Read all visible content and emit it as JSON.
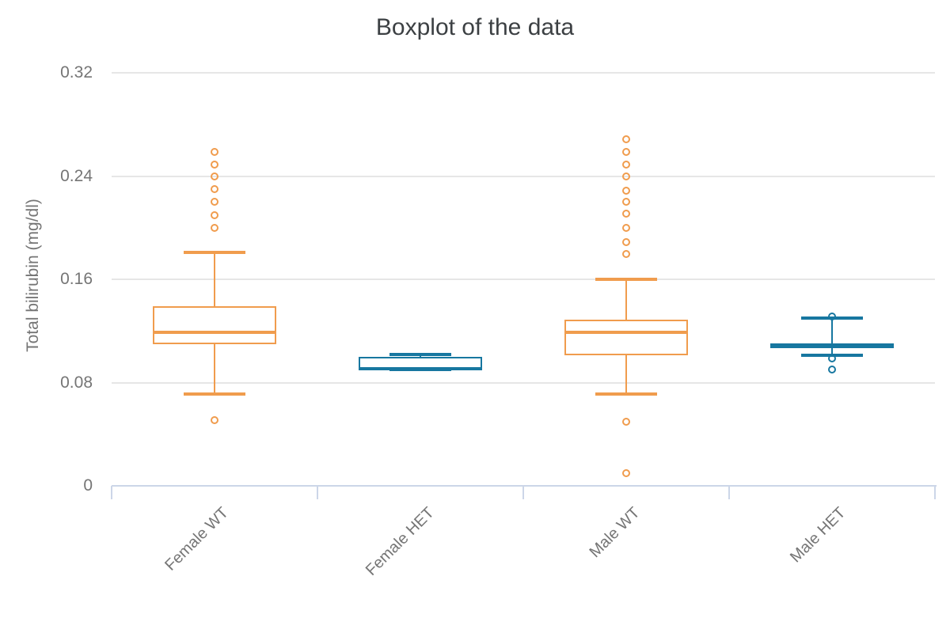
{
  "title": "Boxplot of the data",
  "y_axis": {
    "label": "Total bilirubin (mg/dl)",
    "tick_labels": [
      "0",
      "0.08",
      "0.16",
      "0.24",
      "0.32"
    ],
    "tick_values": [
      0,
      0.08,
      0.16,
      0.24,
      0.32
    ]
  },
  "x_axis": {
    "categories": [
      "Female WT",
      "Female HET",
      "Male WT",
      "Male HET"
    ]
  },
  "colors": {
    "wt_orange": "#F09C4D",
    "het_blue": "#1777A0",
    "gridline": "#e6e6e6",
    "axis_line": "#ccd6e8",
    "muted_text": "#757575",
    "title_text": "#3c4043"
  },
  "chart_data": {
    "type": "boxplot",
    "title": "Boxplot of the data",
    "xlabel": "",
    "ylabel": "Total bilirubin (mg/dl)",
    "ylim": [
      0,
      0.335
    ],
    "yticks": [
      0,
      0.08,
      0.16,
      0.24,
      0.32
    ],
    "grid": true,
    "legend_position": "none",
    "categories": [
      "Female WT",
      "Female HET",
      "Male WT",
      "Male HET"
    ],
    "series": [
      {
        "name": "Female WT",
        "color": "#F09C4D",
        "whisker_low": 0.071,
        "q1": 0.11,
        "median": 0.119,
        "q3": 0.139,
        "whisker_high": 0.181,
        "outliers": [
          0.259,
          0.249,
          0.24,
          0.23,
          0.22,
          0.21,
          0.2,
          0.051
        ]
      },
      {
        "name": "Female HET",
        "color": "#1777A0",
        "whisker_low": 0.09,
        "q1": 0.09,
        "median": 0.091,
        "q3": 0.1,
        "whisker_high": 0.102,
        "outliers": []
      },
      {
        "name": "Male WT",
        "color": "#F09C4D",
        "whisker_low": 0.071,
        "q1": 0.101,
        "median": 0.119,
        "q3": 0.129,
        "whisker_high": 0.16,
        "outliers": [
          0.269,
          0.259,
          0.249,
          0.24,
          0.229,
          0.22,
          0.211,
          0.2,
          0.189,
          0.18,
          0.05,
          0.01
        ]
      },
      {
        "name": "Male HET",
        "color": "#1777A0",
        "whisker_low": 0.101,
        "q1": 0.109,
        "median": 0.109,
        "q3": 0.109,
        "whisker_high": 0.13,
        "outliers": [
          0.131,
          0.099,
          0.09
        ]
      }
    ]
  }
}
